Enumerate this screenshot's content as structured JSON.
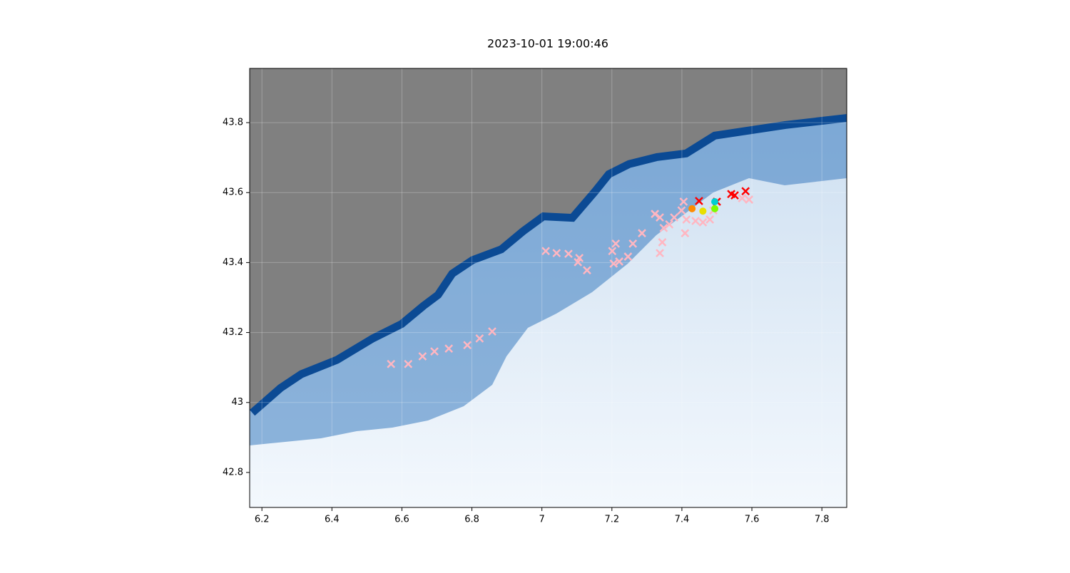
{
  "chart_data": {
    "type": "scatter",
    "title": "2023-10-01 19:00:46",
    "xlim": [
      6.165,
      7.871
    ],
    "ylim": [
      42.7,
      43.955
    ],
    "xticks": [
      6.2,
      6.4,
      6.6,
      6.8,
      7.0,
      7.2,
      7.4,
      7.6,
      7.8
    ],
    "yticks": [
      42.8,
      43.0,
      43.2,
      43.4,
      43.6,
      43.8
    ],
    "grid": true,
    "series": [
      {
        "color": "#ffb6c1",
        "marker": "x",
        "x": [
          6.569,
          6.618,
          6.659,
          6.693,
          6.734,
          6.787,
          6.822,
          6.858,
          7.011,
          7.042,
          7.076,
          7.107,
          7.103,
          7.129,
          7.201,
          7.211,
          7.205,
          7.221,
          7.246,
          7.26,
          7.286,
          7.323,
          7.337,
          7.348,
          7.344,
          7.337,
          7.364,
          7.378,
          7.399,
          7.405,
          7.409,
          7.413,
          7.439,
          7.46,
          7.48,
          7.49,
          7.592,
          7.572
        ],
        "values": [
          43.11,
          43.11,
          43.132,
          43.146,
          43.154,
          43.164,
          43.183,
          43.203,
          43.433,
          43.427,
          43.425,
          43.413,
          43.401,
          43.378,
          43.433,
          43.454,
          43.397,
          43.403,
          43.417,
          43.454,
          43.484,
          43.539,
          43.529,
          43.499,
          43.458,
          43.427,
          43.509,
          43.529,
          43.549,
          43.574,
          43.484,
          43.523,
          43.519,
          43.515,
          43.523,
          43.549,
          43.58,
          43.584
        ]
      },
      {
        "color": "#ff0000",
        "marker": "x",
        "x": [
          7.449,
          7.5,
          7.541,
          7.551,
          7.582
        ],
        "values": [
          43.576,
          43.574,
          43.596,
          43.592,
          43.604
        ]
      },
      {
        "color": "#ff8c00",
        "marker": "o",
        "x": [
          7.429
        ],
        "values": [
          43.554
        ]
      },
      {
        "color": "#e8e000",
        "marker": "o",
        "x": [
          7.46
        ],
        "values": [
          43.547
        ]
      },
      {
        "color": "#7cfc00",
        "marker": "o",
        "x": [
          7.494
        ],
        "values": [
          43.554
        ]
      },
      {
        "color": "#00ced1",
        "marker": "o",
        "x": [
          7.494
        ],
        "values": [
          43.574
        ]
      }
    ]
  }
}
